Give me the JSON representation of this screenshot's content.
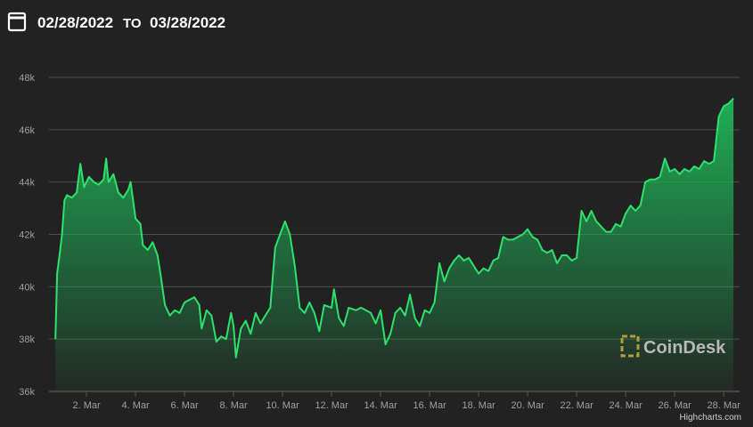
{
  "header": {
    "from": "02/28/2022",
    "separator": "TO",
    "to": "03/28/2022"
  },
  "chart_data": {
    "type": "area",
    "watermark": "CoinDesk",
    "credit": "Highcharts.com",
    "color": "#2ee06e",
    "grid": true,
    "xlim": [
      0.47,
      28.65
    ],
    "xticks": [
      {
        "value": 2,
        "label": "2. Mar"
      },
      {
        "value": 4,
        "label": "4. Mar"
      },
      {
        "value": 6,
        "label": "6. Mar"
      },
      {
        "value": 8,
        "label": "8. Mar"
      },
      {
        "value": 10,
        "label": "10. Mar"
      },
      {
        "value": 12,
        "label": "12. Mar"
      },
      {
        "value": 14,
        "label": "14. Mar"
      },
      {
        "value": 16,
        "label": "16. Mar"
      },
      {
        "value": 18,
        "label": "18. Mar"
      },
      {
        "value": 20,
        "label": "20. Mar"
      },
      {
        "value": 22,
        "label": "22. Mar"
      },
      {
        "value": 24,
        "label": "24. Mar"
      },
      {
        "value": 26,
        "label": "26. Mar"
      },
      {
        "value": 28,
        "label": "28. Mar"
      }
    ],
    "ylim": [
      36000,
      48000
    ],
    "yticks": [
      {
        "value": 36000,
        "label": "36k"
      },
      {
        "value": 38000,
        "label": "38k"
      },
      {
        "value": 40000,
        "label": "40k"
      },
      {
        "value": 42000,
        "label": "42k"
      },
      {
        "value": 44000,
        "label": "44k"
      },
      {
        "value": 46000,
        "label": "46k"
      },
      {
        "value": 48000,
        "label": "48k"
      }
    ],
    "x": [
      0.73,
      0.8,
      0.9,
      1.0,
      1.1,
      1.2,
      1.4,
      1.6,
      1.75,
      1.9,
      2.1,
      2.3,
      2.5,
      2.7,
      2.8,
      2.9,
      3.1,
      3.3,
      3.5,
      3.7,
      3.8,
      4.0,
      4.2,
      4.3,
      4.5,
      4.7,
      4.9,
      5.0,
      5.2,
      5.4,
      5.6,
      5.8,
      6.0,
      6.2,
      6.4,
      6.6,
      6.7,
      6.9,
      7.1,
      7.3,
      7.5,
      7.7,
      7.9,
      8.0,
      8.1,
      8.3,
      8.5,
      8.7,
      8.9,
      9.1,
      9.3,
      9.5,
      9.7,
      9.9,
      10.1,
      10.3,
      10.5,
      10.7,
      10.9,
      11.1,
      11.3,
      11.5,
      11.7,
      12.0,
      12.1,
      12.3,
      12.5,
      12.7,
      13.0,
      13.2,
      13.4,
      13.6,
      13.8,
      14.0,
      14.2,
      14.4,
      14.6,
      14.8,
      15.0,
      15.2,
      15.4,
      15.6,
      15.8,
      16.0,
      16.2,
      16.4,
      16.6,
      16.8,
      17.0,
      17.2,
      17.4,
      17.6,
      17.8,
      18.0,
      18.2,
      18.4,
      18.6,
      18.8,
      19.0,
      19.2,
      19.4,
      19.6,
      19.8,
      20.0,
      20.2,
      20.4,
      20.6,
      20.8,
      21.0,
      21.2,
      21.4,
      21.6,
      21.8,
      22.0,
      22.2,
      22.4,
      22.6,
      22.8,
      23.0,
      23.2,
      23.4,
      23.6,
      23.8,
      24.0,
      24.2,
      24.4,
      24.6,
      24.8,
      25.0,
      25.2,
      25.4,
      25.6,
      25.8,
      26.0,
      26.2,
      26.4,
      26.6,
      26.8,
      27.0,
      27.2,
      27.4,
      27.6,
      27.8,
      28.0,
      28.2,
      28.4
    ],
    "values": [
      38000,
      40500,
      41200,
      42000,
      43300,
      43500,
      43400,
      43600,
      44700,
      43800,
      44200,
      44000,
      43900,
      44100,
      44900,
      44000,
      44300,
      43600,
      43400,
      43700,
      44000,
      42600,
      42400,
      41600,
      41400,
      41700,
      41200,
      40600,
      39300,
      38900,
      39100,
      39000,
      39400,
      39500,
      39600,
      39300,
      38400,
      39100,
      38900,
      37900,
      38100,
      38000,
      39000,
      38500,
      37300,
      38400,
      38700,
      38200,
      39000,
      38600,
      38900,
      39200,
      41500,
      42000,
      42500,
      42000,
      40800,
      39200,
      39000,
      39400,
      39000,
      38300,
      39300,
      39200,
      39900,
      38800,
      38500,
      39200,
      39100,
      39200,
      39100,
      39000,
      38600,
      39100,
      37800,
      38200,
      39000,
      39200,
      38900,
      39700,
      38800,
      38500,
      39100,
      39000,
      39400,
      40900,
      40200,
      40700,
      41000,
      41200,
      41000,
      41100,
      40800,
      40500,
      40700,
      40600,
      41000,
      41100,
      41900,
      41800,
      41800,
      41900,
      42000,
      42200,
      41900,
      41800,
      41400,
      41300,
      41400,
      40900,
      41200,
      41200,
      41000,
      41100,
      42900,
      42500,
      42900,
      42500,
      42300,
      42100,
      42100,
      42400,
      42300,
      42800,
      43100,
      42900,
      43100,
      44000,
      44100,
      44100,
      44200,
      44900,
      44400,
      44500,
      44300,
      44500,
      44400,
      44600,
      44500,
      44800,
      44700,
      44800,
      46500,
      46900,
      47000,
      47200
    ]
  }
}
